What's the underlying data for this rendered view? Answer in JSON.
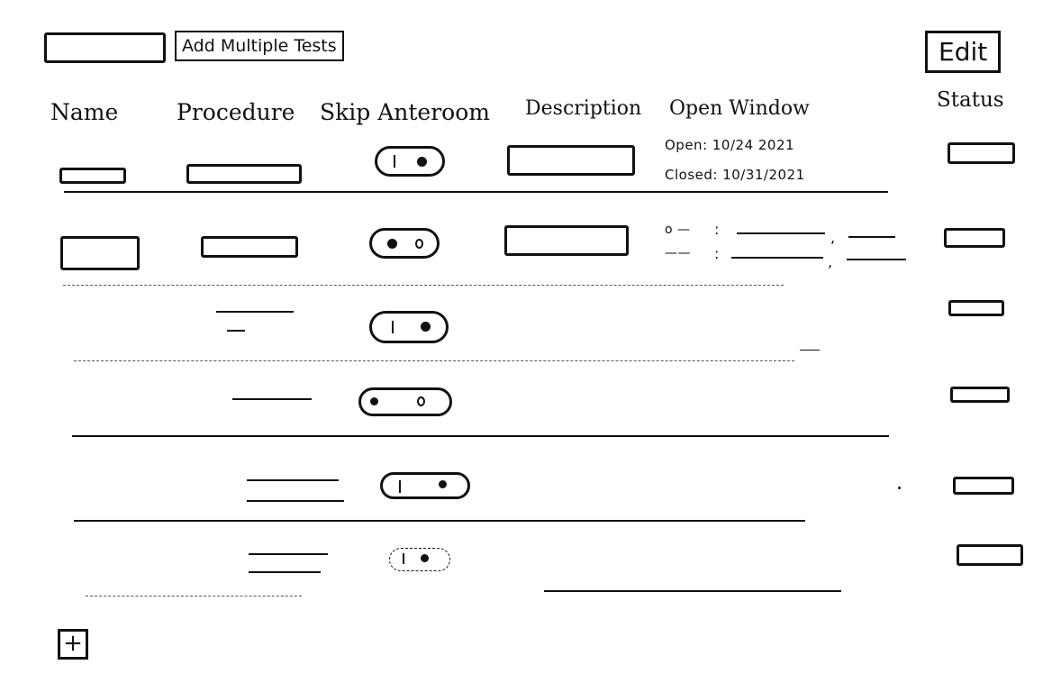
{
  "toolbar": {
    "add_multiple_label": "Add Multiple Tests",
    "edit_label": "Edit"
  },
  "columns": {
    "name": "Name",
    "procedure": "Procedure",
    "skip_anteroom": "Skip Anteroom",
    "description": "Description",
    "open_window": "Open Window",
    "status": "Status"
  },
  "row1": {
    "open_text": "Open: 10/24 2021",
    "closed_text": "Closed: 10/31/2021"
  },
  "row2": {
    "open_prefix": "o —",
    "closed_prefix": "——"
  },
  "footer": {
    "add_symbol": "+"
  }
}
